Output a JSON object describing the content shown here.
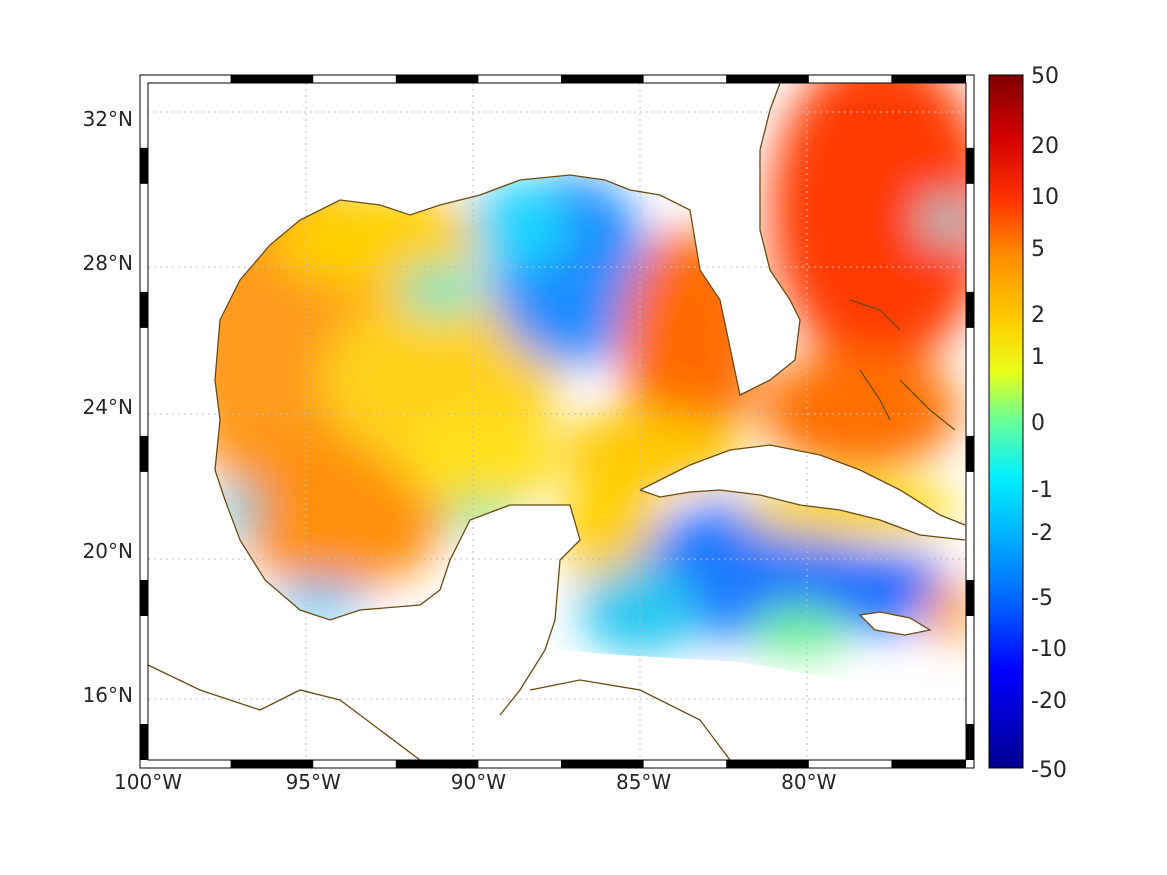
{
  "map": {
    "lon_range": [
      -100,
      -75
    ],
    "lat_range": [
      14.2,
      33
    ],
    "lon_ticks": [
      {
        "value": -100,
        "label": "100°W"
      },
      {
        "value": -95,
        "label": "95°W"
      },
      {
        "value": -90,
        "label": "90°W"
      },
      {
        "value": -85,
        "label": "85°W"
      },
      {
        "value": -80,
        "label": "80°W"
      }
    ],
    "lat_ticks": [
      {
        "value": 16,
        "label": "16°N"
      },
      {
        "value": 20,
        "label": "20°N"
      },
      {
        "value": 24,
        "label": "24°N"
      },
      {
        "value": 28,
        "label": "28°N"
      },
      {
        "value": 32,
        "label": "32°N"
      }
    ],
    "grid": true,
    "coastline_color": "#6b4a12",
    "land_color": "#ffffff"
  },
  "colorbar": {
    "ticks": [
      "50",
      "20",
      "10",
      "5",
      "2",
      "1",
      "0",
      "-1",
      "-2",
      "-5",
      "-10",
      "-20",
      "-50"
    ],
    "colors": [
      "#7f0000",
      "#d40000",
      "#ff3300",
      "#ff8c00",
      "#ffd000",
      "#e6ff1a",
      "#66ff99",
      "#00f0ff",
      "#00b4ff",
      "#0064ff",
      "#0000ff",
      "#00008f"
    ]
  }
}
